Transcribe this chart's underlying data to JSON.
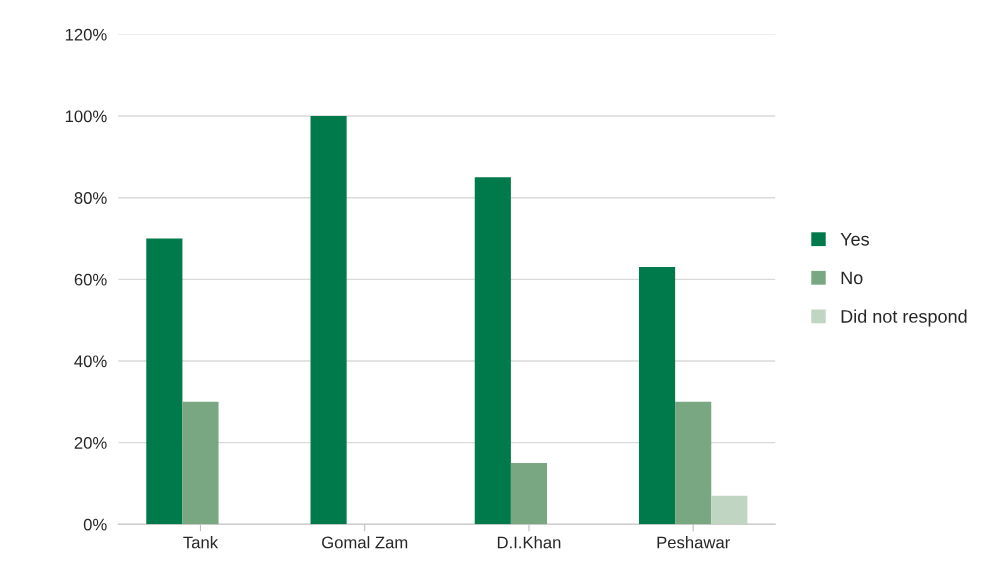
{
  "chart_data": {
    "type": "bar",
    "categories": [
      "Tank",
      "Gomal Zam",
      "D.I.Khan",
      "Peshawar"
    ],
    "series": [
      {
        "name": "Yes",
        "color": "#007a4b",
        "values": [
          70,
          100,
          85,
          63
        ]
      },
      {
        "name": "No",
        "color": "#78a782",
        "values": [
          30,
          null,
          15,
          30
        ]
      },
      {
        "name": "Did not respond",
        "color": "#c1d5c3",
        "values": [
          null,
          null,
          null,
          7
        ]
      }
    ],
    "ylim": [
      0,
      120
    ],
    "yticks": [
      {
        "value": 0,
        "label": "0%"
      },
      {
        "value": 20,
        "label": "20%"
      },
      {
        "value": 40,
        "label": "40%"
      },
      {
        "value": 60,
        "label": "60%"
      },
      {
        "value": 80,
        "label": "80%"
      },
      {
        "value": 100,
        "label": "100%"
      },
      {
        "value": 120,
        "label": "120%"
      }
    ],
    "grid": "y",
    "legend": "right"
  }
}
